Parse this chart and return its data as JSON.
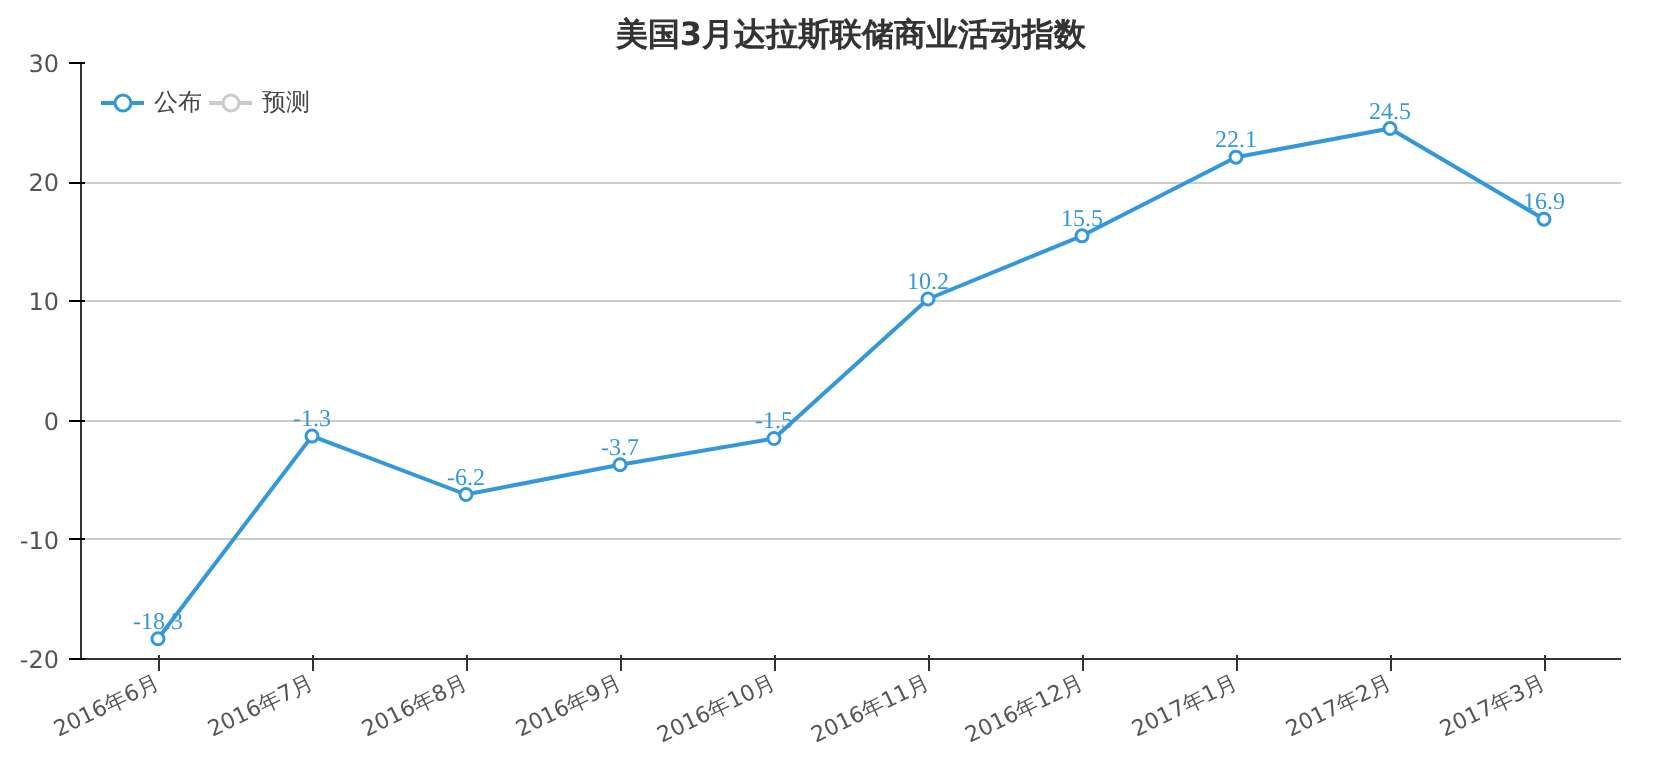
{
  "chart_data": {
    "type": "line",
    "title": "美国3月达拉斯联储商业活动指数",
    "categories": [
      "2016年6月",
      "2016年7月",
      "2016年8月",
      "2016年9月",
      "2016年10月",
      "2016年11月",
      "2016年12月",
      "2017年1月",
      "2017年2月",
      "2017年3月"
    ],
    "series": [
      {
        "name": "公布",
        "color": "#3398db",
        "values": [
          -18.3,
          -1.3,
          -6.2,
          -3.7,
          -1.5,
          10.2,
          15.5,
          22.1,
          24.5,
          16.9
        ]
      },
      {
        "name": "预测",
        "color": "#cccccc",
        "values": [
          null,
          null,
          null,
          null,
          null,
          null,
          null,
          null,
          null,
          null
        ]
      }
    ],
    "ylim": [
      -20,
      30
    ],
    "yticks": [
      -20,
      -10,
      0,
      10,
      20,
      30
    ],
    "grid": "y",
    "legend": "top left",
    "marker": "circle",
    "data_labels": true
  }
}
